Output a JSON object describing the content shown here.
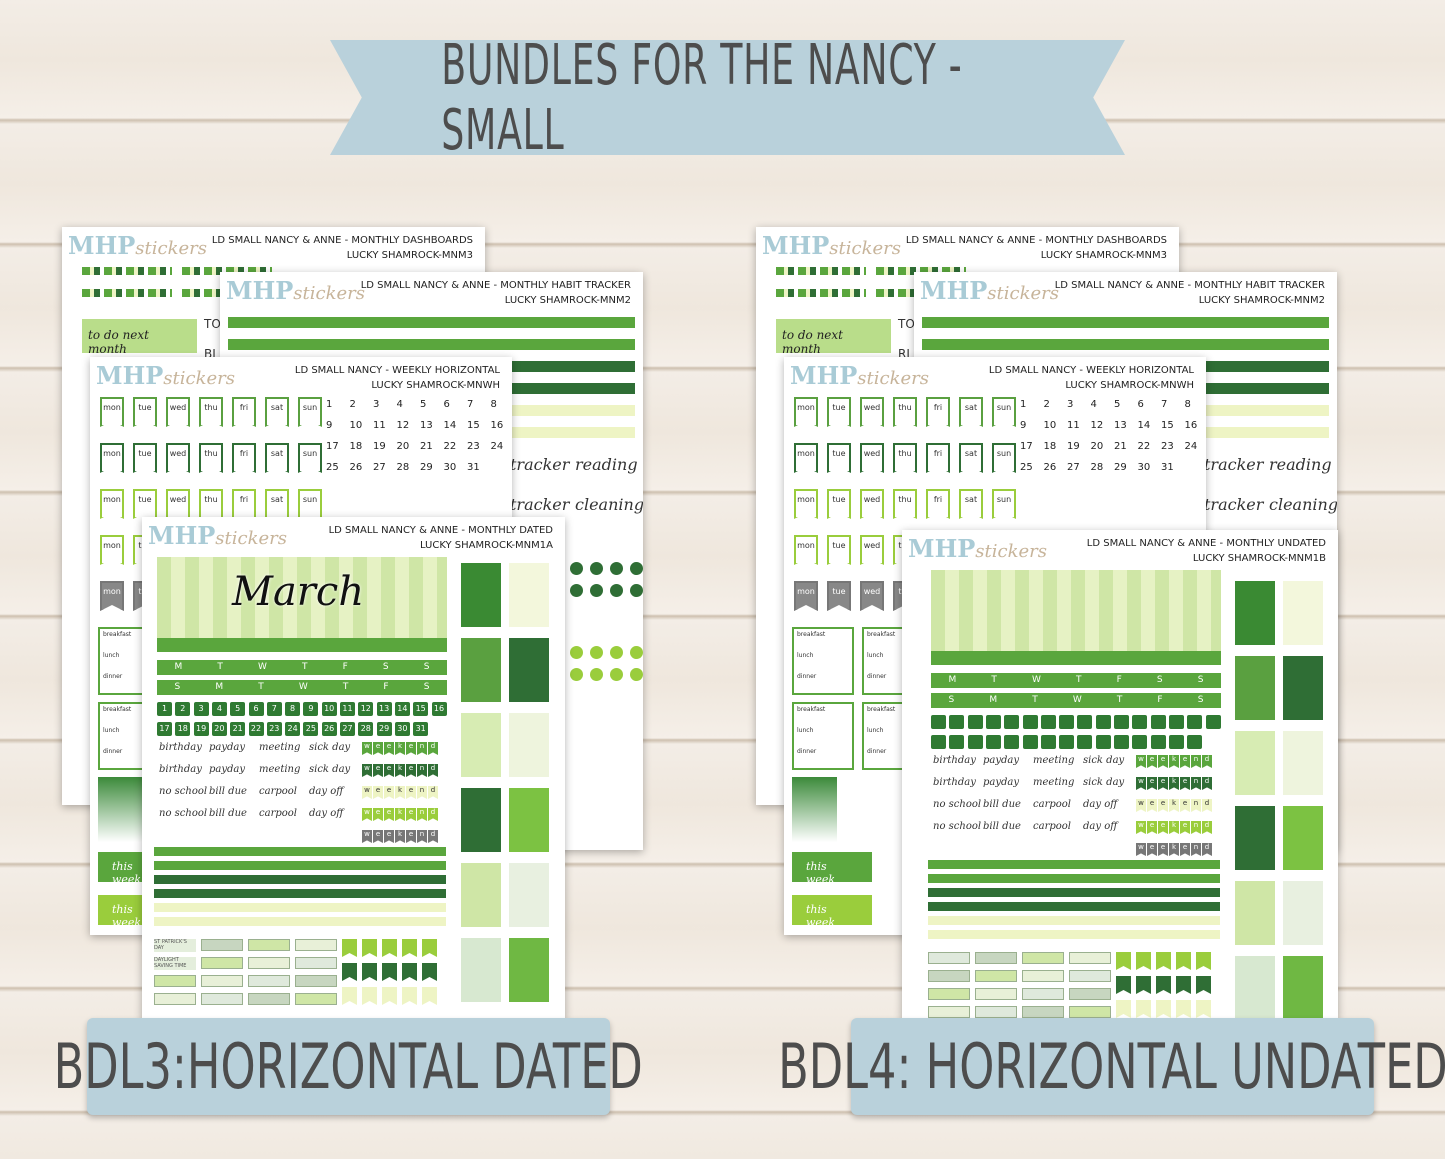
{
  "banner": {
    "title": "BUNDLES FOR THE NANCY - SMALL"
  },
  "colors": {
    "banner": "#b9d1db",
    "green_light": "#5aa63d",
    "green_dark": "#2f6e35",
    "green_pale": "#eef4c4",
    "lime": "#9acd3c",
    "text": "#4d4d4d"
  },
  "logo": {
    "brand": "MHP",
    "script": "stickers"
  },
  "bundles": [
    {
      "label": "BDL3:HORIZONTAL DATED",
      "sheets": {
        "dashboards": {
          "title": "LD SMALL NANCY & ANNE - MONTHLY  DASHBOARDS",
          "code": "LUCKY SHAMROCK-MNM3",
          "todo": "to do next month",
          "side": [
            "TO",
            "BI"
          ]
        },
        "habit": {
          "title": "LD SMALL NANCY & ANNE - MONTHLY HABIT TRACKER",
          "code": "LUCKY SHAMROCK-MNM2",
          "words": [
            "tracker",
            "reading",
            "tracker",
            "cleaning"
          ]
        },
        "weekly": {
          "title": "LD SMALL NANCY - WEEKLY HORIZONTAL",
          "code": "LUCKY SHAMROCK-MNWH",
          "this_week": "this week"
        },
        "monthly": {
          "title": "LD SMALL NANCY & ANNE - MONTHLY DATED",
          "code": "LUCKY SHAMROCK-MNM1A",
          "month": "March",
          "special": [
            "ST PATRICK'S DAY",
            "DAYLIGHT SAVING TIME"
          ]
        }
      }
    },
    {
      "label": "BDL4: HORIZONTAL UNDATED",
      "sheets": {
        "dashboards": {
          "title": "LD SMALL NANCY & ANNE - MONTHLY  DASHBOARDS",
          "code": "LUCKY SHAMROCK-MNM3",
          "todo": "to do next month",
          "side": [
            "TO",
            "RI"
          ]
        },
        "habit": {
          "title": "LD SMALL NANCY & ANNE - MONTHLY HABIT TRACKER",
          "code": "LUCKY SHAMROCK-MNM2",
          "words": [
            "tracker",
            "reading",
            "tracker",
            "cleaning"
          ]
        },
        "weekly": {
          "title": "LD SMALL NANCY - WEEKLY HORIZONTAL",
          "code": "LUCKY SHAMROCK-MNWH",
          "this_week": "this week"
        },
        "monthly": {
          "title": "LD SMALL NANCY & ANNE - MONTHLY UNDATED",
          "code": "LUCKY SHAMROCK-MNM1B",
          "month": "",
          "special": []
        }
      }
    }
  ],
  "weekdays": [
    "mon",
    "tue",
    "wed",
    "thu",
    "fri",
    "sat",
    "sun"
  ],
  "meals": [
    "breakfast",
    "lunch",
    "dinner"
  ],
  "header_mon": [
    "M",
    "T",
    "W",
    "T",
    "F",
    "S",
    "S"
  ],
  "header_sun": [
    "S",
    "M",
    "T",
    "W",
    "T",
    "F",
    "S"
  ],
  "words": [
    "birthday",
    "payday",
    "meeting",
    "sick day",
    "birthday",
    "payday",
    "meeting",
    "sick day",
    "no school",
    "bill due",
    "carpool",
    "day off",
    "no school",
    "bill due",
    "carpool",
    "day off"
  ],
  "weekend": "weekend"
}
